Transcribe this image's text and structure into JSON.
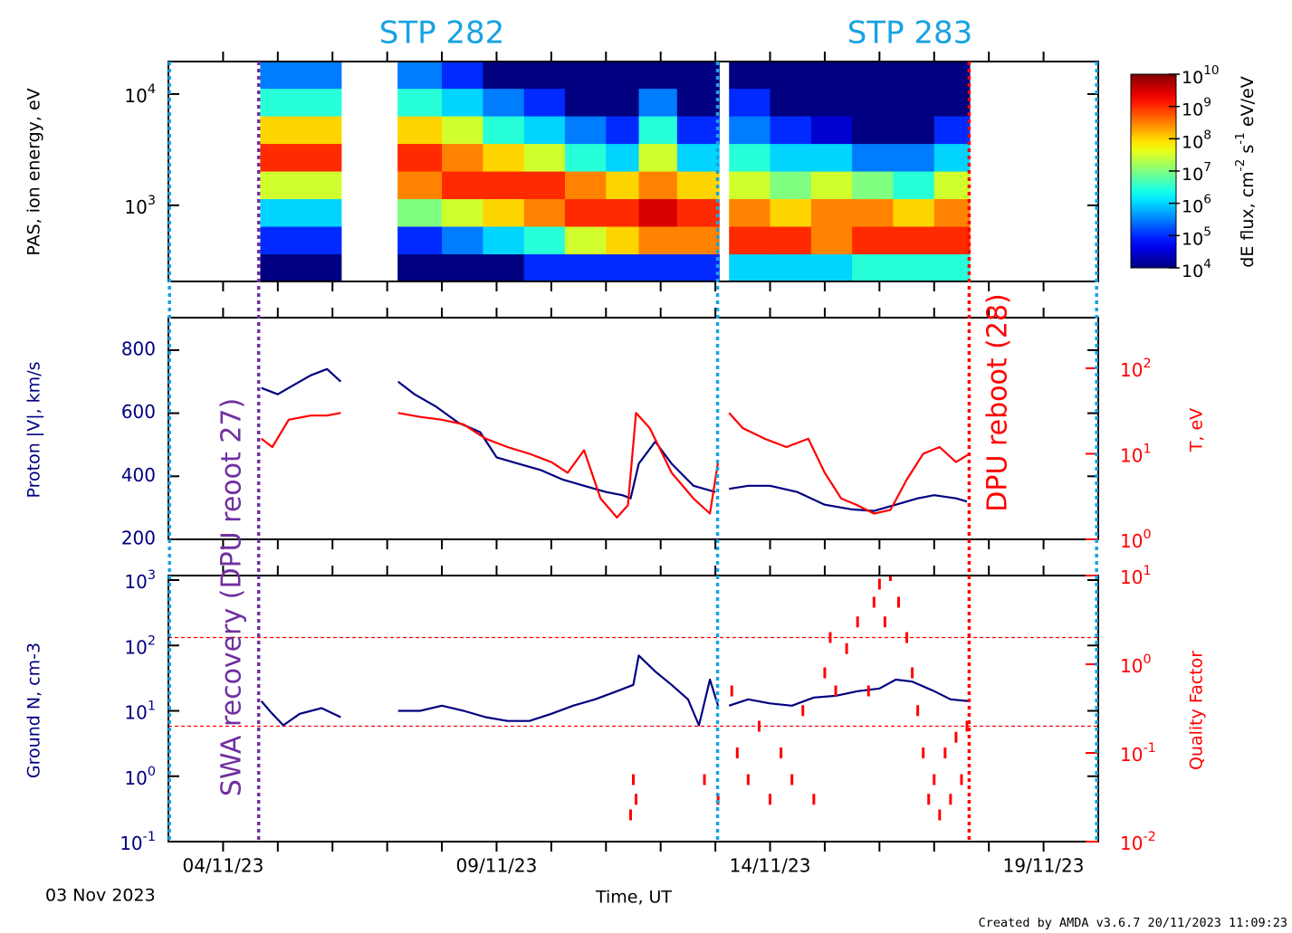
{
  "time_axis": {
    "xlim": [
      3,
      20
    ],
    "xticks": [
      {
        "value": 4,
        "label": "04/11/23"
      },
      {
        "value": 9,
        "label": "09/11/23"
      },
      {
        "value": 14,
        "label": "14/11/23"
      },
      {
        "value": 19,
        "label": "19/11/23"
      }
    ],
    "xminor": [
      4,
      5,
      6,
      7,
      8,
      9,
      10,
      11,
      12,
      13,
      14,
      15,
      16,
      17,
      18,
      19
    ],
    "xlabel": "Time, UT",
    "start_label": "03 Nov 2023"
  },
  "annotations": {
    "stp_labels": [
      "STP 282",
      "STP 283"
    ],
    "stp_color": "#17a3e3",
    "markers": [
      {
        "x": 3.02,
        "color": "#17a3e3"
      },
      {
        "x": 4.65,
        "color": "#7030a0"
      },
      {
        "x": 13.04,
        "color": "#17a3e3"
      },
      {
        "x": 17.64,
        "color": "#ff0000"
      },
      {
        "x": 19.97,
        "color": "#17a3e3"
      }
    ],
    "marker_labels": [
      {
        "text": "SWA recovery (DPU reoot 27)",
        "color": "#7030a0"
      },
      {
        "text": "DPU reboot (28)",
        "color": "#ff0000"
      }
    ]
  },
  "footer": "Created by AMDA v3.6.7 20/11/2023 11:09:23",
  "chart_data": [
    {
      "type": "spectrogram",
      "ylabel": "PAS, ion energy, eV",
      "ylog": true,
      "ylim": [
        207,
        19600
      ],
      "ycolor": "#000000",
      "yticks": [
        {
          "value": 1000,
          "label": "10",
          "sup": "3"
        },
        {
          "value": 10000,
          "label": "10",
          "sup": "4"
        }
      ],
      "colormap": "jet",
      "energy_bins": [
        207,
        366,
        648,
        1147,
        2030,
        3593,
        6360,
        11257,
        19600
      ],
      "columns": [
        {
          "x": [
            4.68,
            5.4
          ],
          "flux": [
            10000.0,
            100000.0,
            1000000.0,
            30000000.0,
            1000000000.0,
            100000000.0,
            3000000.0,
            300000.0
          ]
        },
        {
          "x": [
            5.4,
            6.16
          ],
          "flux": [
            10000.0,
            100000.0,
            1000000.0,
            30000000.0,
            1000000000.0,
            100000000.0,
            3000000.0,
            300000.0
          ]
        },
        {
          "x": [
            7.19,
            8.0
          ],
          "flux": [
            10000.0,
            100000.0,
            10000000.0,
            300000000.0,
            1000000000.0,
            100000000.0,
            3000000.0,
            300000.0
          ]
        },
        {
          "x": [
            8.0,
            8.75
          ],
          "flux": [
            10000.0,
            300000.0,
            30000000.0,
            1000000000.0,
            300000000.0,
            30000000.0,
            1000000.0,
            100000.0
          ]
        },
        {
          "x": [
            8.75,
            9.5
          ],
          "flux": [
            10000.0,
            1000000.0,
            100000000.0,
            1000000000.0,
            100000000.0,
            3000000.0,
            300000.0,
            10000.0
          ]
        },
        {
          "x": [
            9.5,
            10.25
          ],
          "flux": [
            100000.0,
            3000000.0,
            300000000.0,
            1000000000.0,
            30000000.0,
            1000000.0,
            100000.0,
            10000.0
          ]
        },
        {
          "x": [
            10.25,
            11.0
          ],
          "flux": [
            100000.0,
            30000000.0,
            1000000000.0,
            300000000.0,
            3000000.0,
            300000.0,
            10000.0,
            10000.0
          ]
        },
        {
          "x": [
            11.0,
            11.6
          ],
          "flux": [
            100000.0,
            100000000.0,
            1000000000.0,
            100000000.0,
            1000000.0,
            100000.0,
            10000.0,
            10000.0
          ]
        },
        {
          "x": [
            11.6,
            12.3
          ],
          "flux": [
            100000.0,
            300000000.0,
            3000000000.0,
            300000000.0,
            30000000.0,
            3000000.0,
            300000.0,
            10000.0
          ]
        },
        {
          "x": [
            12.3,
            13.07
          ],
          "flux": [
            100000.0,
            300000000.0,
            1000000000.0,
            100000000.0,
            1000000.0,
            100000.0,
            10000.0,
            10000.0
          ]
        },
        {
          "x": [
            13.25,
            14.0
          ],
          "flux": [
            1000000.0,
            1000000000.0,
            300000000.0,
            30000000.0,
            3000000.0,
            300000.0,
            100000.0,
            10000.0
          ]
        },
        {
          "x": [
            14.0,
            14.75
          ],
          "flux": [
            1000000.0,
            1000000000.0,
            100000000.0,
            10000000.0,
            1000000.0,
            100000.0,
            10000.0,
            10000.0
          ]
        },
        {
          "x": [
            14.75,
            15.5
          ],
          "flux": [
            1000000.0,
            300000000.0,
            300000000.0,
            30000000.0,
            1000000.0,
            30000.0,
            10000.0,
            10000.0
          ]
        },
        {
          "x": [
            15.5,
            16.25
          ],
          "flux": [
            3000000.0,
            1000000000.0,
            300000000.0,
            10000000.0,
            300000.0,
            10000.0,
            10000.0,
            10000.0
          ]
        },
        {
          "x": [
            16.25,
            17.0
          ],
          "flux": [
            3000000.0,
            1000000000.0,
            100000000.0,
            3000000.0,
            300000.0,
            10000.0,
            10000.0,
            10000.0
          ]
        },
        {
          "x": [
            17.0,
            17.65
          ],
          "flux": [
            3000000.0,
            1000000000.0,
            300000000.0,
            30000000.0,
            1000000.0,
            100000.0,
            10000.0,
            10000.0
          ]
        }
      ],
      "colorbar": {
        "label": [
          "dE flux, cm",
          "-2",
          " s",
          "-1",
          " eV/eV"
        ],
        "lim": [
          10000.0,
          10000000000.0
        ],
        "ticks": [
          {
            "value": 10000.0,
            "label": "10",
            "sup": "4"
          },
          {
            "value": 100000.0,
            "label": "10",
            "sup": "5"
          },
          {
            "value": 1000000.0,
            "label": "10",
            "sup": "6"
          },
          {
            "value": 10000000.0,
            "label": "10",
            "sup": "7"
          },
          {
            "value": 100000000.0,
            "label": "10",
            "sup": "8"
          },
          {
            "value": 1000000000.0,
            "label": "10",
            "sup": "9"
          },
          {
            "value": 10000000000.0,
            "label": "10",
            "sup": "10"
          }
        ]
      }
    },
    {
      "type": "line",
      "ylabel": "Proton |V|, km/s",
      "ycolor": "#000080",
      "ylim": [
        200,
        903
      ],
      "yticks": [
        200,
        400,
        600,
        800
      ],
      "y2label": "T, eV",
      "y2color": "#ff0000",
      "y2log": true,
      "y2lim": [
        1,
        390
      ],
      "y2ticks": [
        {
          "value": 1,
          "label": "10",
          "sup": "0"
        },
        {
          "value": 10,
          "label": "10",
          "sup": "1"
        },
        {
          "value": 100,
          "label": "10",
          "sup": "2"
        }
      ],
      "series": [
        {
          "color": "#000080",
          "x": [
            4.7,
            5.0,
            5.3,
            5.6,
            5.9,
            6.15,
            6.6,
            7.2,
            7.5,
            7.9,
            8.3,
            8.7,
            9.0,
            9.4,
            9.8,
            10.2,
            10.6,
            11.0,
            11.3,
            11.45,
            11.6,
            11.9,
            12.2,
            12.6,
            13.0,
            13.15,
            13.25,
            13.6,
            14.0,
            14.5,
            15.0,
            15.5,
            15.9,
            16.3,
            16.7,
            17.0,
            17.4,
            17.6
          ],
          "values": [
            680,
            660,
            690,
            720,
            740,
            700,
            null,
            700,
            660,
            620,
            570,
            540,
            460,
            440,
            420,
            390,
            370,
            350,
            340,
            330,
            440,
            510,
            440,
            370,
            350,
            null,
            360,
            370,
            370,
            350,
            310,
            295,
            290,
            310,
            330,
            340,
            330,
            320
          ]
        },
        {
          "color": "#ff0000",
          "axis": "y2",
          "x": [
            4.7,
            4.9,
            5.2,
            5.6,
            5.9,
            6.15,
            6.6,
            7.2,
            7.6,
            8.0,
            8.4,
            8.8,
            9.2,
            9.6,
            10.0,
            10.3,
            10.6,
            10.9,
            11.2,
            11.4,
            11.55,
            11.8,
            12.2,
            12.6,
            12.9,
            13.05,
            13.15,
            13.25,
            13.5,
            13.9,
            14.3,
            14.7,
            15.0,
            15.3,
            15.6,
            15.9,
            16.2,
            16.5,
            16.8,
            17.1,
            17.4,
            17.65
          ],
          "values": [
            15,
            12,
            25,
            28,
            28,
            30,
            null,
            30,
            27,
            25,
            22,
            15,
            12,
            10,
            8,
            6,
            11,
            3,
            1.8,
            2.5,
            30,
            20,
            6,
            3,
            2,
            8,
            null,
            30,
            20,
            15,
            12,
            15,
            6,
            3,
            2.5,
            2,
            2.2,
            5,
            10,
            12,
            8,
            10
          ]
        }
      ]
    },
    {
      "type": "line",
      "ylabel": "Ground N, cm-3",
      "ycolor": "#000080",
      "ylog": true,
      "ylim": [
        0.1,
        1173
      ],
      "yticks": [
        {
          "value": 0.1,
          "label": "10",
          "sup": "-1"
        },
        {
          "value": 1,
          "label": "10",
          "sup": "0"
        },
        {
          "value": 10,
          "label": "10",
          "sup": "1"
        },
        {
          "value": 100,
          "label": "10",
          "sup": "2"
        },
        {
          "value": 1000,
          "label": "10",
          "sup": "3"
        }
      ],
      "y2label": "Quality Factor",
      "y2color": "#ff0000",
      "y2log": true,
      "y2lim": [
        0.01,
        10
      ],
      "y2ticks": [
        {
          "value": 0.01,
          "label": "10",
          "sup": "-2"
        },
        {
          "value": 0.1,
          "label": "10",
          "sup": "-1"
        },
        {
          "value": 1,
          "label": "10",
          "sup": "0"
        },
        {
          "value": 10,
          "label": "10",
          "sup": "1"
        }
      ],
      "ref_lines": [
        2,
        0.2
      ],
      "series": [
        {
          "color": "#000080",
          "x": [
            4.7,
            4.9,
            5.1,
            5.4,
            5.8,
            6.15,
            6.6,
            7.2,
            7.6,
            8.0,
            8.4,
            8.8,
            9.2,
            9.6,
            10.0,
            10.4,
            10.8,
            11.2,
            11.5,
            11.6,
            11.9,
            12.2,
            12.5,
            12.7,
            12.9,
            13.05,
            13.15,
            13.25,
            13.6,
            14.0,
            14.4,
            14.8,
            15.2,
            15.6,
            16.0,
            16.3,
            16.6,
            17.0,
            17.3,
            17.65
          ],
          "values": [
            14,
            9,
            6,
            9,
            11,
            8,
            null,
            10,
            10,
            12,
            10,
            8,
            7,
            7,
            9,
            12,
            15,
            20,
            25,
            70,
            40,
            25,
            15,
            6,
            30,
            12,
            null,
            12,
            15,
            13,
            12,
            16,
            17,
            20,
            22,
            30,
            28,
            20,
            15,
            14
          ]
        },
        {
          "color": "#ff0000",
          "axis": "y2",
          "style": "points",
          "x": [
            11.45,
            11.5,
            11.55,
            12.8,
            13.05,
            13.3,
            13.4,
            13.6,
            13.8,
            14.0,
            14.2,
            14.4,
            14.6,
            14.8,
            15.0,
            15.1,
            15.2,
            15.4,
            15.6,
            15.8,
            15.9,
            16.0,
            16.1,
            16.2,
            16.35,
            16.5,
            16.6,
            16.7,
            16.8,
            16.9,
            17.0,
            17.1,
            17.2,
            17.3,
            17.4,
            17.5,
            17.6
          ],
          "values": [
            0.02,
            0.05,
            0.03,
            0.05,
            0.03,
            0.5,
            0.1,
            0.05,
            0.2,
            0.03,
            0.1,
            0.05,
            0.3,
            0.03,
            0.8,
            2,
            0.5,
            1.5,
            3,
            0.5,
            5,
            8,
            3,
            10,
            5,
            2,
            0.8,
            0.3,
            0.1,
            0.03,
            0.05,
            0.02,
            0.1,
            0.03,
            0.15,
            0.05,
            0.2
          ]
        }
      ]
    }
  ]
}
